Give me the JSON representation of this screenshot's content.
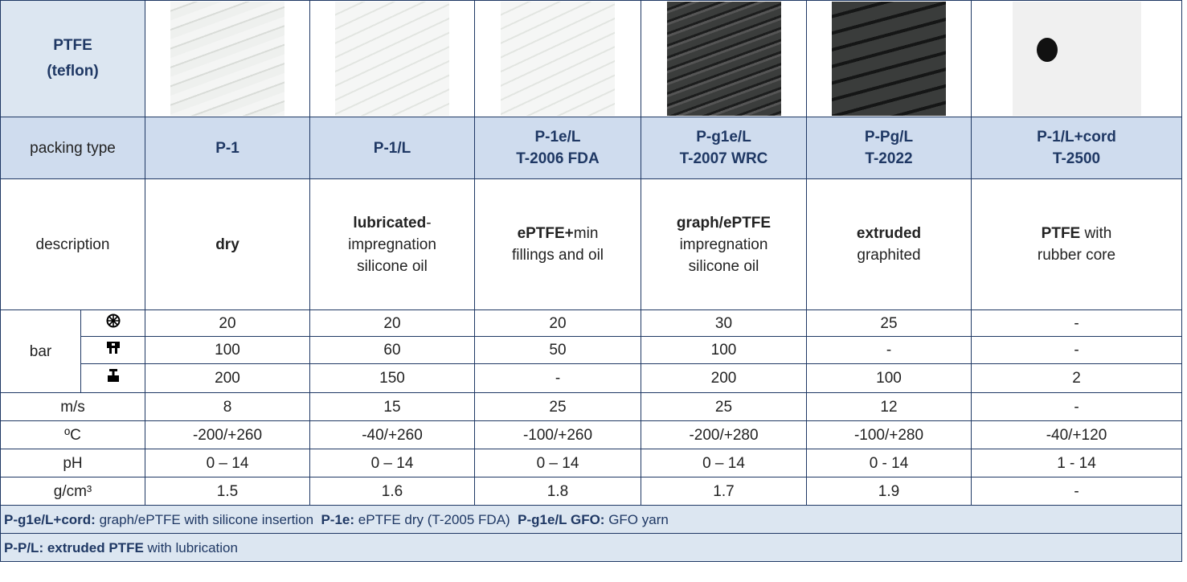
{
  "table": {
    "title": [
      "PTFE",
      "(teflon)"
    ],
    "packing_type": {
      "label": "packing type",
      "cells": [
        [
          "P-1"
        ],
        [
          "P-1/L"
        ],
        [
          "P-1e/L",
          "T-2006 FDA"
        ],
        [
          "P-g1e/L",
          "T-2007 WRC"
        ],
        [
          "P-Pg/L",
          "T-2022"
        ],
        [
          "P-1/L+cord",
          "T-2500"
        ]
      ]
    },
    "description": {
      "label": "description",
      "cells": [
        [
          [
            {
              "text": "dry",
              "bold": true
            }
          ]
        ],
        [
          [
            {
              "text": "lubricated",
              "bold": true
            },
            {
              "text": "-",
              "bold": false
            }
          ],
          [
            {
              "text": "impregnation",
              "bold": false
            }
          ],
          [
            {
              "text": "silicone oil",
              "bold": false
            }
          ]
        ],
        [
          [
            {
              "text": "ePTFE+",
              "bold": true
            },
            {
              "text": "min",
              "bold": false
            }
          ],
          [
            {
              "text": "fillings and oil",
              "bold": false
            }
          ]
        ],
        [
          [
            {
              "text": "graph/ePTFE",
              "bold": true
            }
          ],
          [
            {
              "text": "impregnation",
              "bold": false
            }
          ],
          [
            {
              "text": "silicone oil",
              "bold": false
            }
          ]
        ],
        [
          [
            {
              "text": "extruded",
              "bold": true
            }
          ],
          [
            {
              "text": "graphited",
              "bold": false
            }
          ]
        ],
        [
          [
            {
              "text": "PTFE",
              "bold": true
            },
            {
              "text": " with",
              "bold": false
            }
          ],
          [
            {
              "text": "rubber core",
              "bold": false
            }
          ]
        ]
      ]
    },
    "bar": {
      "label": "bar",
      "rows": [
        [
          "20",
          "20",
          "20",
          "30",
          "25",
          "-"
        ],
        [
          "100",
          "60",
          "50",
          "100",
          "-",
          "-"
        ],
        [
          "200",
          "150",
          "-",
          "200",
          "100",
          "2"
        ]
      ]
    },
    "params": [
      {
        "label": "m/s",
        "values": [
          "8",
          "15",
          "25",
          "25",
          "12",
          "-"
        ]
      },
      {
        "label": "ºC",
        "values": [
          "-200/+260",
          "-40/+260",
          "-100/+260",
          "-200/+280",
          "-100/+280",
          "-40/+120"
        ]
      },
      {
        "label": "pH",
        "values": [
          "0 – 14",
          "0 – 14",
          "0 – 14",
          "0 – 14",
          "0 - 14",
          "1 - 14"
        ]
      },
      {
        "label": "g/cm³",
        "values": [
          "1.5",
          "1.6",
          "1.8",
          "1.7",
          "1.9",
          "-"
        ]
      }
    ],
    "footer": [
      [
        {
          "text": "P-g1e/L+cord:",
          "bold": true
        },
        {
          "text": " graph/ePTFE with silicone insertion  ",
          "bold": false
        },
        {
          "text": "P-1e:",
          "bold": true
        },
        {
          "text": " ePTFE dry (T-2005 FDA)  ",
          "bold": false
        },
        {
          "text": "P-g1e/L GFO:",
          "bold": true
        },
        {
          "text": " GFO yarn",
          "bold": false
        }
      ],
      [
        {
          "text": "P-P/L: extruded PTFE",
          "bold": true
        },
        {
          "text": " with lubrication",
          "bold": false
        }
      ]
    ]
  }
}
